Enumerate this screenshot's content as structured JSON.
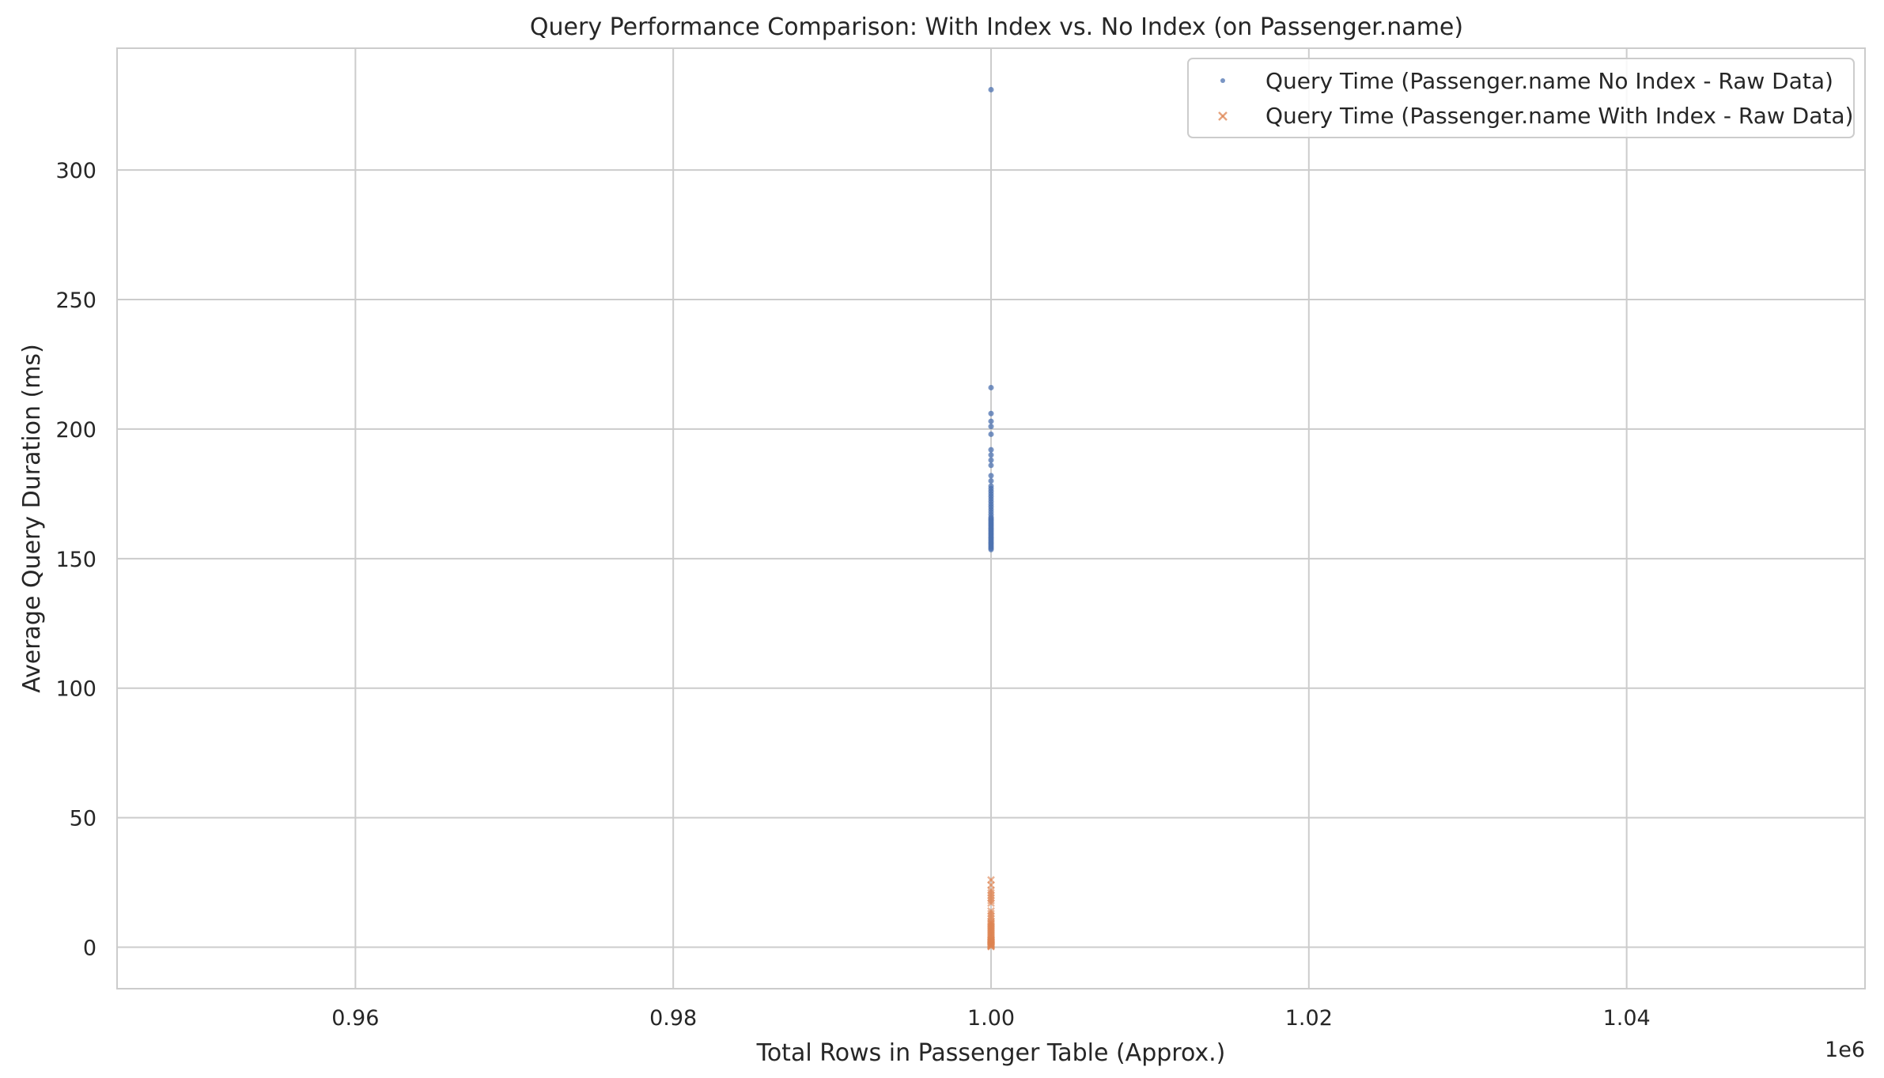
{
  "chart_data": {
    "type": "scatter",
    "title": "Query Performance Comparison: With Index vs. No Index (on Passenger.name)",
    "xlabel": "Total Rows in Passenger Table (Approx.)",
    "ylabel": "Average Query Duration (ms)",
    "x_offset_label": "1e6",
    "xlim": [
      0.945,
      1.055
    ],
    "ylim": [
      -16,
      347
    ],
    "x_ticks": [
      0.96,
      0.98,
      1.0,
      1.02,
      1.04
    ],
    "x_tick_labels": [
      "0.96",
      "0.98",
      "1.00",
      "1.02",
      "1.04"
    ],
    "y_ticks": [
      0,
      50,
      100,
      150,
      200,
      250,
      300
    ],
    "y_tick_labels": [
      "0",
      "50",
      "100",
      "150",
      "200",
      "250",
      "300"
    ],
    "grid": true,
    "legend_placement": "top-right",
    "series": [
      {
        "name": "Query Time (Passenger.name No Index - Raw Data)",
        "marker": "circle",
        "color": "#4c72b0",
        "x": [
          1.0,
          1.0,
          1.0,
          1.0,
          1.0,
          1.0,
          1.0,
          1.0,
          1.0,
          1.0,
          1.0,
          1.0,
          1.0,
          1.0,
          1.0,
          1.0,
          1.0,
          1.0,
          1.0,
          1.0,
          1.0,
          1.0,
          1.0,
          1.0,
          1.0,
          1.0,
          1.0,
          1.0,
          1.0,
          1.0,
          1.0,
          1.0,
          1.0,
          1.0,
          1.0,
          1.0,
          1.0,
          1.0,
          1.0,
          1.0,
          1.0,
          1.0,
          1.0,
          1.0,
          1.0,
          1.0,
          1.0,
          1.0,
          1.0,
          1.0
        ],
        "y": [
          331,
          216,
          206,
          203,
          201,
          198,
          192,
          190,
          188,
          186,
          182,
          180,
          178,
          177,
          176,
          175,
          174,
          173,
          172,
          171,
          170,
          169,
          168,
          167,
          166,
          165.5,
          165,
          164.5,
          164,
          163.5,
          163,
          162.5,
          162,
          161.5,
          161,
          160.5,
          160,
          159.5,
          159,
          158.5,
          158,
          157.5,
          157,
          156.5,
          156,
          155.5,
          155,
          154.5,
          154,
          153.5
        ]
      },
      {
        "name": "Query Time (Passenger.name With Index - Raw Data)",
        "marker": "x",
        "color": "#dd8452",
        "x": [
          1.0,
          1.0,
          1.0,
          1.0,
          1.0,
          1.0,
          1.0,
          1.0,
          1.0,
          1.0,
          1.0,
          1.0,
          1.0,
          1.0,
          1.0,
          1.0,
          1.0,
          1.0,
          1.0,
          1.0,
          1.0,
          1.0,
          1.0,
          1.0,
          1.0,
          1.0,
          1.0,
          1.0,
          1.0,
          1.0,
          1.0,
          1.0,
          1.0,
          1.0,
          1.0,
          1.0,
          1.0,
          1.0,
          1.0,
          1.0
        ],
        "y": [
          26,
          24,
          22,
          21,
          20,
          19,
          18,
          17,
          14,
          13,
          12,
          11,
          10,
          9.5,
          9,
          8.5,
          8,
          7.5,
          7,
          6.5,
          6,
          5.5,
          5,
          4.5,
          4,
          3.5,
          3,
          2.8,
          2.5,
          2.2,
          2,
          1.8,
          1.6,
          1.4,
          1.2,
          1,
          0.8,
          0.6,
          0.4,
          0.2
        ]
      }
    ]
  }
}
